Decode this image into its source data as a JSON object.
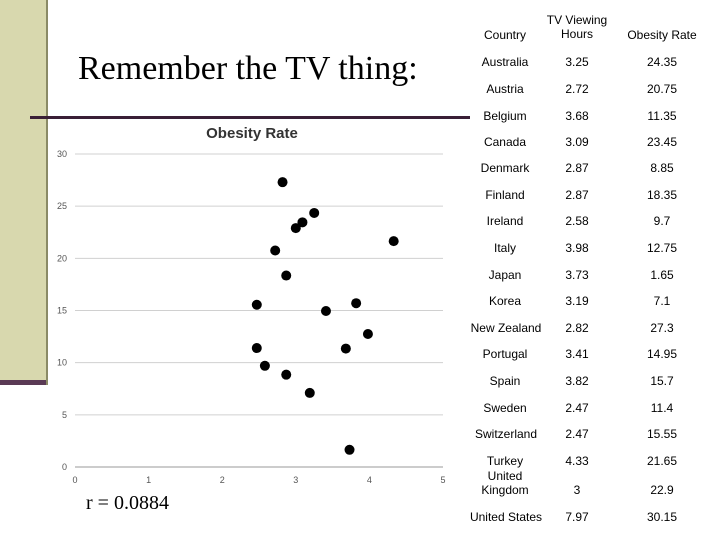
{
  "slide": {
    "title": "Remember the TV thing:",
    "r_label": "r = 0.0884"
  },
  "table": {
    "headers": [
      "Country",
      "TV Viewing Hours",
      "Obesity Rate"
    ],
    "rows": [
      {
        "country": "Australia",
        "tv": "3.25",
        "obesity": "24.35"
      },
      {
        "country": "Austria",
        "tv": "2.72",
        "obesity": "20.75"
      },
      {
        "country": "Belgium",
        "tv": "3.68",
        "obesity": "11.35"
      },
      {
        "country": "Canada",
        "tv": "3.09",
        "obesity": "23.45"
      },
      {
        "country": "Denmark",
        "tv": "2.87",
        "obesity": "8.85"
      },
      {
        "country": "Finland",
        "tv": "2.87",
        "obesity": "18.35"
      },
      {
        "country": "Ireland",
        "tv": "2.58",
        "obesity": "9.7"
      },
      {
        "country": "Italy",
        "tv": "3.98",
        "obesity": "12.75"
      },
      {
        "country": "Japan",
        "tv": "3.73",
        "obesity": "1.65"
      },
      {
        "country": "Korea",
        "tv": "3.19",
        "obesity": "7.1"
      },
      {
        "country": "New Zealand",
        "tv": "2.82",
        "obesity": "27.3"
      },
      {
        "country": "Portugal",
        "tv": "3.41",
        "obesity": "14.95"
      },
      {
        "country": "Spain",
        "tv": "3.82",
        "obesity": "15.7"
      },
      {
        "country": "Sweden",
        "tv": "2.47",
        "obesity": "11.4"
      },
      {
        "country": "Switzerland",
        "tv": "2.47",
        "obesity": "15.55"
      },
      {
        "country": "Turkey",
        "tv": "4.33",
        "obesity": "21.65"
      },
      {
        "country": "United Kingdom",
        "tv": "3",
        "obesity": "22.9"
      },
      {
        "country": "United States",
        "tv": "7.97",
        "obesity": "30.15"
      }
    ]
  },
  "chart_data": {
    "type": "scatter",
    "title": "Obesity Rate",
    "xlim": [
      0,
      5
    ],
    "ylim": [
      0,
      30
    ],
    "x_ticks": [
      "0",
      "1",
      "2",
      "3",
      "4",
      "5"
    ],
    "y_ticks": [
      "0",
      "5",
      "10",
      "15",
      "20",
      "25",
      "30"
    ],
    "grid": true,
    "point_color": "#000000",
    "points": [
      {
        "x": 3.25,
        "y": 24.35
      },
      {
        "x": 2.72,
        "y": 20.75
      },
      {
        "x": 3.68,
        "y": 11.35
      },
      {
        "x": 3.09,
        "y": 23.45
      },
      {
        "x": 2.87,
        "y": 8.85
      },
      {
        "x": 2.87,
        "y": 18.35
      },
      {
        "x": 2.58,
        "y": 9.7
      },
      {
        "x": 3.98,
        "y": 12.75
      },
      {
        "x": 3.73,
        "y": 1.65
      },
      {
        "x": 3.19,
        "y": 7.1
      },
      {
        "x": 2.82,
        "y": 27.3
      },
      {
        "x": 3.41,
        "y": 14.95
      },
      {
        "x": 3.82,
        "y": 15.7
      },
      {
        "x": 2.47,
        "y": 11.4
      },
      {
        "x": 2.47,
        "y": 15.55
      },
      {
        "x": 4.33,
        "y": 21.65
      },
      {
        "x": 3.0,
        "y": 22.9
      }
    ]
  }
}
